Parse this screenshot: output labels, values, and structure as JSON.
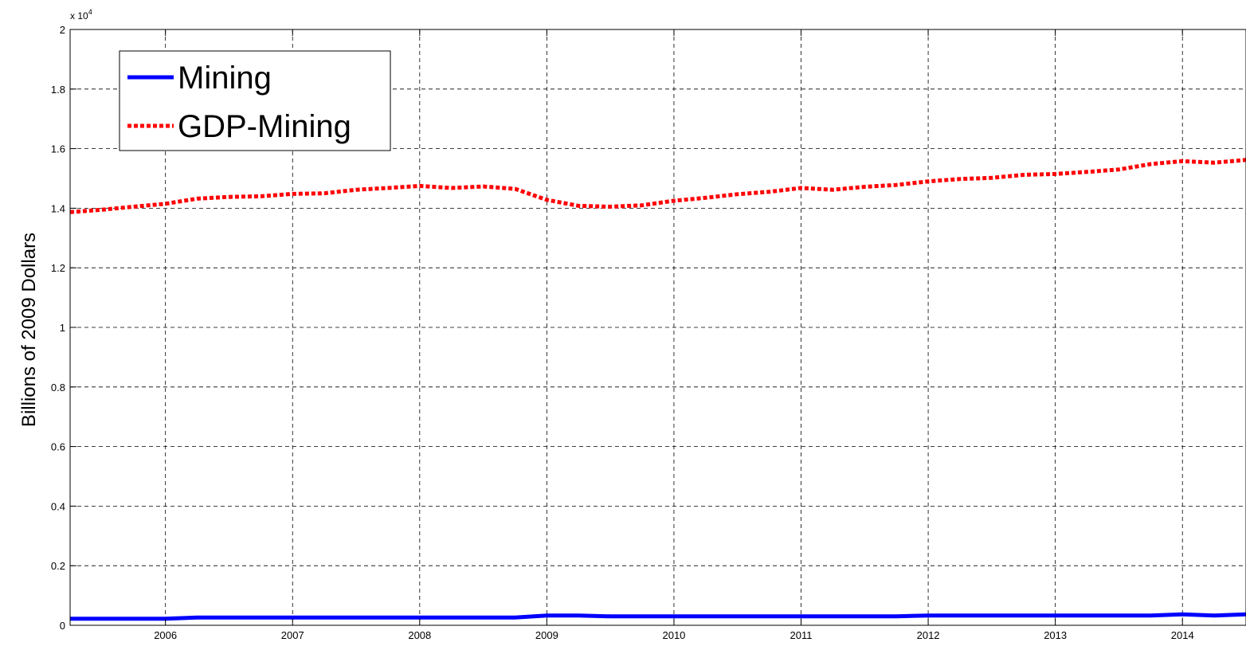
{
  "chart_data": {
    "type": "line",
    "title": "",
    "xlabel": "",
    "ylabel": "Billions of 2009 Dollars",
    "y_exponent_base": "x 10",
    "y_exponent_power": "4",
    "xlim": [
      2005.25,
      2014.5
    ],
    "ylim": [
      0,
      20000
    ],
    "x_ticks": [
      2006,
      2007,
      2008,
      2009,
      2010,
      2011,
      2012,
      2013,
      2014
    ],
    "x_tick_labels": [
      "2006",
      "2007",
      "2008",
      "2009",
      "2010",
      "2011",
      "2012",
      "2013",
      "2014"
    ],
    "y_ticks": [
      0,
      2000,
      4000,
      6000,
      8000,
      10000,
      12000,
      14000,
      16000,
      18000,
      20000
    ],
    "y_tick_labels": [
      "0",
      "0.2",
      "0.4",
      "0.6",
      "0.8",
      "1",
      "1.2",
      "1.4",
      "1.6",
      "1.8",
      "2"
    ],
    "grid": true,
    "legend_position": "top-left",
    "series": [
      {
        "name": "Mining",
        "color": "#0000ff",
        "style": "solid",
        "x": [
          2005.25,
          2005.5,
          2005.75,
          2006.0,
          2006.25,
          2006.5,
          2006.75,
          2007.0,
          2007.25,
          2007.5,
          2007.75,
          2008.0,
          2008.25,
          2008.5,
          2008.75,
          2009.0,
          2009.25,
          2009.5,
          2009.75,
          2010.0,
          2010.25,
          2010.5,
          2010.75,
          2011.0,
          2011.25,
          2011.5,
          2011.75,
          2012.0,
          2012.25,
          2012.5,
          2012.75,
          2013.0,
          2013.25,
          2013.5,
          2013.75,
          2014.0,
          2014.25,
          2014.5
        ],
        "y": [
          220,
          220,
          220,
          220,
          260,
          260,
          260,
          260,
          260,
          260,
          260,
          260,
          260,
          260,
          260,
          330,
          330,
          300,
          300,
          300,
          300,
          300,
          300,
          300,
          300,
          300,
          300,
          330,
          330,
          330,
          330,
          330,
          330,
          330,
          330,
          370,
          330,
          370
        ]
      },
      {
        "name": "GDP-Mining",
        "color": "#ff0000",
        "style": "dotted",
        "x": [
          2005.25,
          2005.5,
          2005.75,
          2006.0,
          2006.25,
          2006.5,
          2006.75,
          2007.0,
          2007.25,
          2007.5,
          2007.75,
          2008.0,
          2008.25,
          2008.5,
          2008.75,
          2009.0,
          2009.25,
          2009.5,
          2009.75,
          2010.0,
          2010.25,
          2010.5,
          2010.75,
          2011.0,
          2011.25,
          2011.5,
          2011.75,
          2012.0,
          2012.25,
          2012.5,
          2012.75,
          2013.0,
          2013.25,
          2013.5,
          2013.75,
          2014.0,
          2014.25,
          2014.5
        ],
        "y": [
          13870,
          13950,
          14050,
          14150,
          14320,
          14380,
          14400,
          14480,
          14500,
          14620,
          14680,
          14750,
          14680,
          14730,
          14650,
          14280,
          14080,
          14050,
          14100,
          14250,
          14350,
          14470,
          14550,
          14680,
          14620,
          14720,
          14780,
          14900,
          14980,
          15020,
          15120,
          15150,
          15220,
          15300,
          15480,
          15580,
          15530,
          15620
        ]
      }
    ]
  }
}
